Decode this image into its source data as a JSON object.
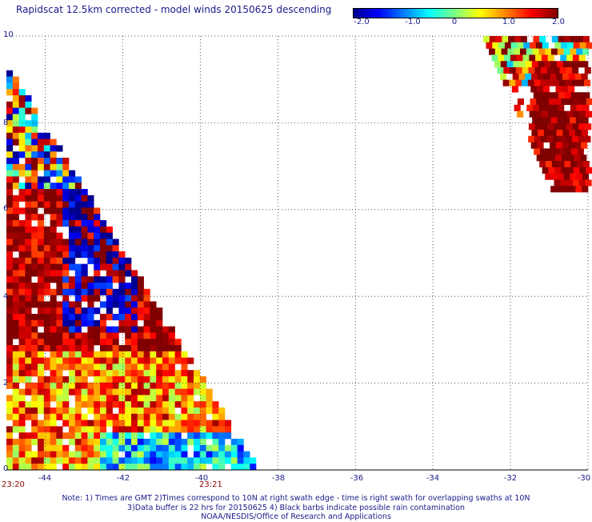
{
  "title": "Rapidscat 12.5km corrected - model winds 20150625 descending",
  "colorbar": {
    "labels": [
      "-2.0",
      "-1.0",
      "0",
      "1.0",
      "2.0"
    ],
    "min": -2.0,
    "max": 2.0
  },
  "axes": {
    "lon_ticks": [
      "-44",
      "-42",
      "-40",
      "-38",
      "-36",
      "-34",
      "-32",
      "-30"
    ],
    "lat_ticks": [
      "10",
      "8",
      "6",
      "4",
      "2",
      "0"
    ],
    "lon_range": [
      -45,
      -30
    ],
    "lat_range": [
      0,
      10
    ],
    "grid": true
  },
  "swath_times": [
    "23:20",
    "23:21"
  ],
  "notes": [
    "Note: 1) Times are GMT 2)Times correspond to 10N at right swath edge - time is right swath for overlapping swaths at 10N",
    "3)Data buffer is 22 hrs for 20150625 4) Black barbs indicate possible rain contamination",
    "NOAA/NESDIS/Office of Research and Applications"
  ]
}
